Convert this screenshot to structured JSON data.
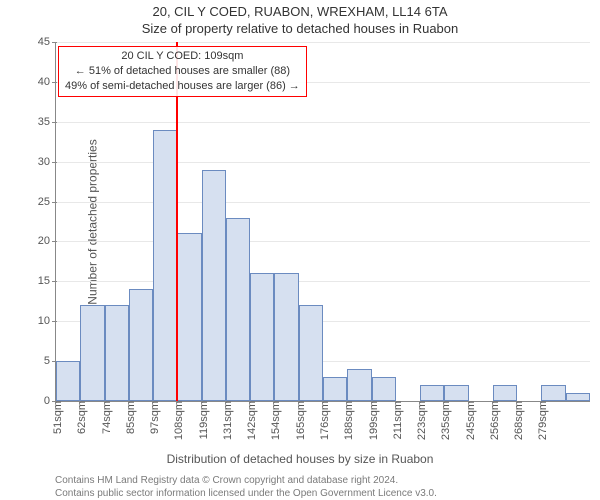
{
  "title_main": "20, CIL Y COED, RUABON, WREXHAM, LL14 6TA",
  "title_sub": "Size of property relative to detached houses in Ruabon",
  "chart": {
    "type": "histogram",
    "ylabel": "Number of detached properties",
    "xlabel": "Distribution of detached houses by size in Ruabon",
    "ylim": [
      0,
      45
    ],
    "ytick_step": 5,
    "xticks": [
      "51sqm",
      "62sqm",
      "74sqm",
      "85sqm",
      "97sqm",
      "108sqm",
      "119sqm",
      "131sqm",
      "142sqm",
      "154sqm",
      "165sqm",
      "176sqm",
      "188sqm",
      "199sqm",
      "211sqm",
      "223sqm",
      "235sqm",
      "245sqm",
      "256sqm",
      "268sqm",
      "279sqm"
    ],
    "values": [
      5,
      12,
      12,
      14,
      34,
      21,
      29,
      23,
      16,
      16,
      12,
      3,
      4,
      3,
      0,
      2,
      2,
      0,
      2,
      0,
      2,
      1
    ],
    "bar_fill": "#d6e0f0",
    "bar_stroke": "#6b8bc0",
    "grid_color": "#e8e8e8",
    "axis_color": "#888888",
    "background_color": "#ffffff",
    "reference": {
      "index": 5,
      "line_color": "#ff0000",
      "box_border": "#ff0000",
      "box_bg": "rgba(255,255,255,0.9)",
      "lines": [
        "20 CIL Y COED: 109sqm",
        "← 51% of detached houses are smaller (88)",
        "49% of semi-detached houses are larger (86) →"
      ]
    }
  },
  "footer_line1": "Contains HM Land Registry data © Crown copyright and database right 2024.",
  "footer_line2": "Contains public sector information licensed under the Open Government Licence v3.0."
}
